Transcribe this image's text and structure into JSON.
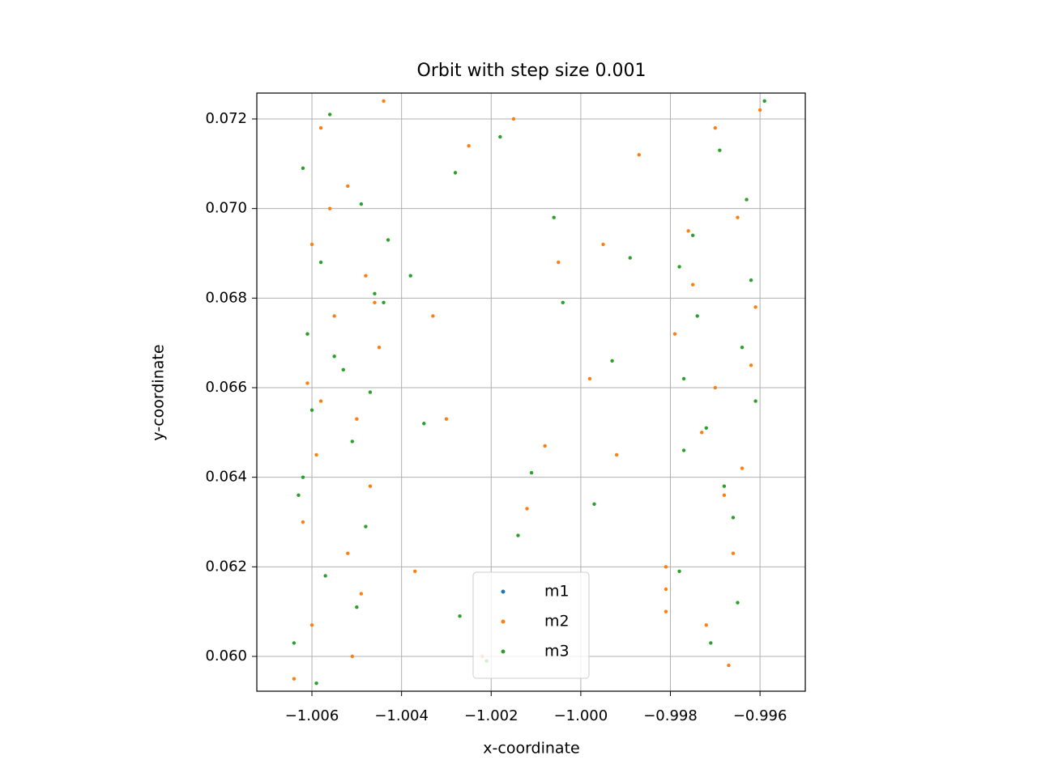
{
  "chart_data": {
    "type": "scatter",
    "title": "Orbit with step size 0.001",
    "x_label": "x-coordinate",
    "y_label": "y-coordinate",
    "xlim": [
      -1.00723,
      -0.99499
    ],
    "ylim": [
      0.059223,
      0.072578
    ],
    "xticks": [
      {
        "value": -1.006,
        "label": "−1.006"
      },
      {
        "value": -1.004,
        "label": "−1.004"
      },
      {
        "value": -1.002,
        "label": "−1.002"
      },
      {
        "value": -1.0,
        "label": "−1.000"
      },
      {
        "value": -0.998,
        "label": "−0.998"
      },
      {
        "value": -0.996,
        "label": "−0.996"
      }
    ],
    "yticks": [
      {
        "value": 0.06,
        "label": "0.060"
      },
      0.062,
      0.064,
      0.066,
      0.068,
      {
        "value": 0.07,
        "label": "0.070"
      },
      0.072
    ],
    "grid": true,
    "legend_position": "lower center",
    "series": [
      {
        "name": "m1",
        "color": "#1f77b4",
        "x": [],
        "y": []
      },
      {
        "name": "m2",
        "color": "#ff7f0e",
        "x": [
          -1.0058,
          -1.0052,
          -1.006,
          -1.0048,
          -1.0055,
          -1.0045,
          -1.0061,
          -1.005,
          -1.0059,
          -1.0047,
          -1.0062,
          -1.0052,
          -1.0049,
          -1.006,
          -1.0051,
          -1.0064,
          -1.0044,
          -1.0056,
          -1.0046,
          -1.0058,
          -1.0025,
          -1.0015,
          -1.0005,
          -1.0033,
          -0.9995,
          -1.0012,
          -1.003,
          -0.9998,
          -1.0022,
          -0.9992,
          -1.0037,
          -1.0008,
          -0.9987,
          -0.9979,
          -0.997,
          -0.9965,
          -0.9975,
          -0.9962,
          -0.9973,
          -0.9968,
          -0.9981,
          -0.9981,
          -0.9981,
          -0.9966,
          -0.9972,
          -0.9961,
          -0.9976,
          -0.9967,
          -0.996,
          -0.997,
          -0.9964
        ],
        "y": [
          0.0718,
          0.0705,
          0.0692,
          0.0685,
          0.0676,
          0.0669,
          0.0661,
          0.0653,
          0.0645,
          0.0638,
          0.063,
          0.0623,
          0.0614,
          0.0607,
          0.06,
          0.0595,
          0.0724,
          0.07,
          0.0679,
          0.0657,
          0.0714,
          0.072,
          0.0688,
          0.0676,
          0.0692,
          0.0633,
          0.0653,
          0.0662,
          0.06,
          0.0645,
          0.0619,
          0.0647,
          0.0712,
          0.0672,
          0.0718,
          0.0698,
          0.0683,
          0.0665,
          0.065,
          0.0636,
          0.062,
          0.0615,
          0.061,
          0.0623,
          0.0607,
          0.0678,
          0.0695,
          0.0598,
          0.0722,
          0.066,
          0.0642
        ]
      },
      {
        "name": "m3",
        "color": "#2ca02c",
        "x": [
          -1.0056,
          -1.0062,
          -1.0049,
          -1.0058,
          -1.0046,
          -1.0061,
          -1.0053,
          -1.0044,
          -1.006,
          -1.0051,
          -1.0063,
          -1.0048,
          -1.0057,
          -1.0064,
          -1.005,
          -1.0059,
          -1.0043,
          -1.0055,
          -1.0062,
          -1.0047,
          -1.0028,
          -1.0018,
          -1.0004,
          -1.0035,
          -0.9993,
          -1.0011,
          -1.0027,
          -0.9997,
          -1.0038,
          -0.9989,
          -1.0021,
          -1.0006,
          -1.0014,
          -0.9978,
          -0.9969,
          -0.9963,
          -0.9974,
          -0.9961,
          -0.9977,
          -0.9966,
          -0.9978,
          -0.9971,
          -0.9964,
          -0.9975,
          -0.9968,
          -0.9959,
          -0.9972,
          -0.9965,
          -0.9977,
          -0.9962
        ],
        "y": [
          0.0721,
          0.0709,
          0.0701,
          0.0688,
          0.0681,
          0.0672,
          0.0664,
          0.0679,
          0.0655,
          0.0648,
          0.0636,
          0.0629,
          0.0618,
          0.0603,
          0.0611,
          0.0594,
          0.0693,
          0.0667,
          0.064,
          0.0659,
          0.0708,
          0.0716,
          0.0679,
          0.0652,
          0.0666,
          0.0641,
          0.0609,
          0.0634,
          0.0685,
          0.0689,
          0.0599,
          0.0698,
          0.0627,
          0.0687,
          0.0713,
          0.0702,
          0.0676,
          0.0657,
          0.0646,
          0.0631,
          0.0619,
          0.0603,
          0.0669,
          0.0694,
          0.0638,
          0.0724,
          0.0651,
          0.0612,
          0.0662,
          0.0684
        ]
      }
    ]
  }
}
